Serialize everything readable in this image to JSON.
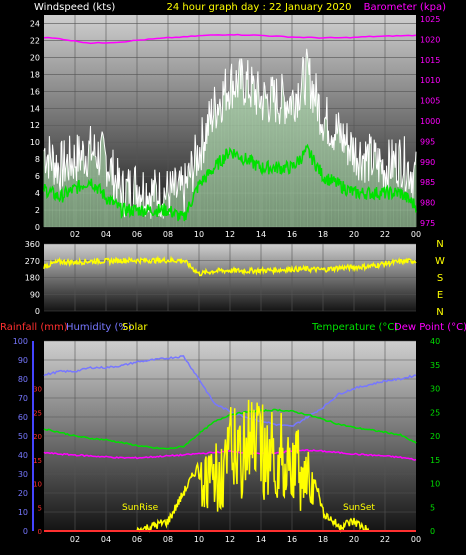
{
  "header": {
    "left_label": "Windspeed (kts)",
    "title": "24 hour graph day : 22 January 2020",
    "right_label": "Barometer (kpa)"
  },
  "colors": {
    "wind_gust": "#ffffff",
    "wind_avg": "#00e000",
    "wind_fill": "#b6e8b6",
    "barometer": "#ff00ff",
    "direction": "#ffff00",
    "rainfall": "#ff3030",
    "humidity": "#7777ff",
    "solar": "#ffff00",
    "temperature": "#00e000",
    "dewpoint": "#ff00ff",
    "grid_grad_top": "#ffffff",
    "grid_grad_bottom": "#101010"
  },
  "x_ticks": [
    "02",
    "04",
    "06",
    "08",
    "10",
    "12",
    "14",
    "16",
    "18",
    "20",
    "22",
    "00"
  ],
  "direction_labels": [
    "N",
    "W",
    "S",
    "E",
    "N"
  ],
  "bottom_labels": {
    "rainfall": "Rainfall (mm)",
    "humidity": "Humidity (%)",
    "solar": "Solar",
    "temperature": "Temperature (°C)",
    "dewpoint": "Dew Point (°C)"
  },
  "annotations": {
    "sunrise": "SunRise",
    "sunset": "SunSet"
  },
  "chart_data": [
    {
      "type": "line",
      "name": "wind",
      "x": [
        0,
        1,
        2,
        3,
        4,
        5,
        6,
        7,
        8,
        9,
        10,
        11,
        12,
        13,
        14,
        15,
        16,
        17,
        18,
        19,
        20,
        21,
        22,
        23,
        24
      ],
      "series": [
        {
          "name": "Gust",
          "values": [
            9,
            7,
            8,
            9,
            8,
            4,
            5,
            4,
            4,
            4,
            9,
            14,
            17,
            17,
            15,
            15,
            15,
            18,
            13,
            11,
            9,
            8,
            7,
            8,
            6
          ]
        },
        {
          "name": "Average",
          "values": [
            4.5,
            3.5,
            4.5,
            5.5,
            3.5,
            2,
            2,
            2,
            2,
            1,
            5,
            7,
            9,
            8,
            7,
            7,
            7,
            9,
            6,
            5,
            4,
            4,
            4,
            4,
            2.5
          ]
        }
      ],
      "ylim": [
        0,
        25
      ],
      "yticks": [
        0,
        2,
        4,
        6,
        8,
        10,
        12,
        14,
        16,
        18,
        20,
        22,
        24
      ]
    },
    {
      "type": "line",
      "name": "barometer",
      "x": [
        0,
        1,
        2,
        3,
        4,
        5,
        6,
        7,
        8,
        9,
        10,
        11,
        12,
        13,
        14,
        15,
        16,
        17,
        18,
        19,
        20,
        21,
        22,
        23,
        24
      ],
      "series": [
        {
          "name": "Barometer",
          "values": [
            1020.5,
            1020.2,
            1019.6,
            1019.1,
            1019.2,
            1019.4,
            1019.8,
            1020.1,
            1020.4,
            1020.6,
            1020.9,
            1021.1,
            1021.2,
            1021.1,
            1021.0,
            1020.8,
            1020.6,
            1020.5,
            1020.4,
            1020.4,
            1020.5,
            1020.7,
            1020.8,
            1020.9,
            1021.0
          ]
        }
      ],
      "ylim": [
        974,
        1026
      ],
      "yticks": [
        975,
        980,
        985,
        990,
        995,
        1000,
        1005,
        1010,
        1015,
        1020,
        1025
      ]
    },
    {
      "type": "line",
      "name": "wind_direction",
      "x": [
        0,
        1,
        2,
        3,
        4,
        5,
        6,
        7,
        8,
        9,
        10,
        11,
        12,
        13,
        14,
        15,
        16,
        17,
        18,
        19,
        20,
        21,
        22,
        23,
        24
      ],
      "series": [
        {
          "name": "Direction",
          "values": [
            240,
            265,
            262,
            268,
            268,
            272,
            272,
            272,
            272,
            272,
            200,
            215,
            218,
            215,
            218,
            220,
            225,
            225,
            222,
            232,
            235,
            240,
            255,
            265,
            270
          ]
        }
      ],
      "ylim": [
        0,
        360
      ],
      "yticks": [
        0,
        90,
        180,
        270,
        360
      ]
    },
    {
      "type": "line",
      "name": "humidity_rain",
      "x": [
        0,
        1,
        2,
        3,
        4,
        5,
        6,
        7,
        8,
        9,
        10,
        11,
        12,
        13,
        14,
        15,
        16,
        17,
        18,
        19,
        20,
        21,
        22,
        23,
        24
      ],
      "series": [
        {
          "name": "Humidity",
          "values": [
            82,
            84,
            84,
            86,
            86,
            87,
            89,
            90,
            91,
            92,
            80,
            67,
            63,
            60,
            58,
            56,
            55,
            60,
            65,
            72,
            75,
            77,
            79,
            80,
            82
          ]
        },
        {
          "name": "Rainfall",
          "values": [
            0,
            0,
            0,
            0,
            0,
            0,
            0,
            0,
            0,
            0,
            0,
            0,
            0,
            0,
            0,
            0,
            0,
            0,
            0,
            0,
            0,
            0,
            0,
            0,
            0
          ]
        }
      ],
      "ylim": [
        0,
        100
      ],
      "yticks": [
        0,
        10,
        20,
        30,
        40,
        50,
        60,
        70,
        80,
        90,
        100
      ]
    },
    {
      "type": "line",
      "name": "temperature",
      "x": [
        0,
        1,
        2,
        3,
        4,
        5,
        6,
        7,
        8,
        9,
        10,
        11,
        12,
        13,
        14,
        15,
        16,
        17,
        18,
        19,
        20,
        21,
        22,
        23,
        24
      ],
      "series": [
        {
          "name": "Temperature",
          "values": [
            21.5,
            20.8,
            20.0,
            19.5,
            19.2,
            18.6,
            18.0,
            17.5,
            17.3,
            17.8,
            20.5,
            23.0,
            24.5,
            25.0,
            25.3,
            25.5,
            25.2,
            24.5,
            23.5,
            22.5,
            21.8,
            21.3,
            20.8,
            20.2,
            18.5
          ]
        },
        {
          "name": "Dew Point",
          "values": [
            16.5,
            16.2,
            16.0,
            15.8,
            15.6,
            15.4,
            15.4,
            15.6,
            15.8,
            16.0,
            16.3,
            16.5,
            16.8,
            16.5,
            16.2,
            16.5,
            16.8,
            17.0,
            16.8,
            16.5,
            16.2,
            16.0,
            15.8,
            15.5,
            15.0
          ]
        },
        {
          "name": "Solar",
          "values": [
            0,
            0,
            0,
            0,
            0,
            0,
            0,
            1,
            2,
            8,
            14,
            18,
            26,
            30,
            27,
            25,
            25,
            18,
            4,
            1,
            2,
            0,
            0,
            0,
            0
          ]
        }
      ],
      "ylim": [
        0,
        40
      ],
      "yticks": [
        0,
        5,
        10,
        15,
        20,
        25,
        30,
        35,
        40
      ],
      "left_ticks": [
        0,
        5,
        10,
        15,
        20,
        25,
        30
      ]
    }
  ]
}
